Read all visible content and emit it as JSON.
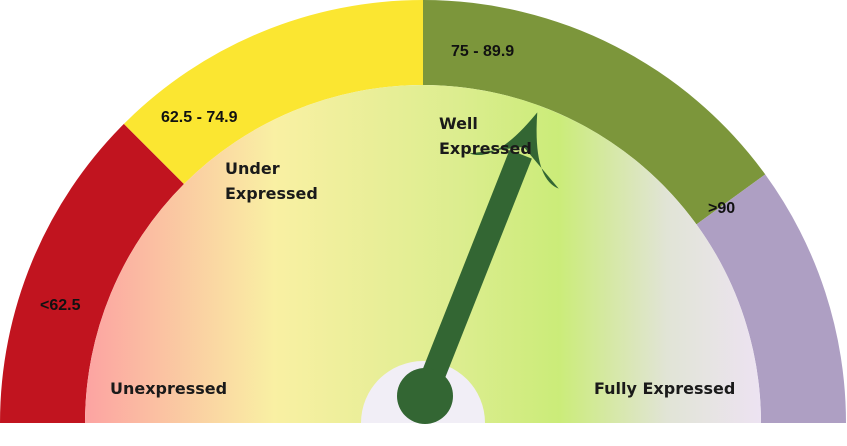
{
  "gauge": {
    "value": 81,
    "scale_min": 50,
    "scale_max": 100,
    "needle_color": "#336633",
    "bands": [
      {
        "range_label": "<62.5",
        "from": 50,
        "to": 62.5,
        "color": "#c1141f"
      },
      {
        "range_label": "62.5 - 74.9",
        "from": 62.5,
        "to": 75,
        "color": "#fbe631"
      },
      {
        "range_label": "75 - 89.9",
        "from": 75,
        "to": 90,
        "color": "#7c963b"
      },
      {
        "range_label": ">90",
        "from": 90,
        "to": 100,
        "color": "#ae9fc3"
      }
    ],
    "zones": [
      {
        "lines": [
          "Unexpressed"
        ]
      },
      {
        "lines": [
          "Under",
          "Expressed"
        ]
      },
      {
        "lines": [
          "Well",
          "Expressed"
        ]
      },
      {
        "lines": [
          "Fully Expressed"
        ]
      }
    ]
  }
}
